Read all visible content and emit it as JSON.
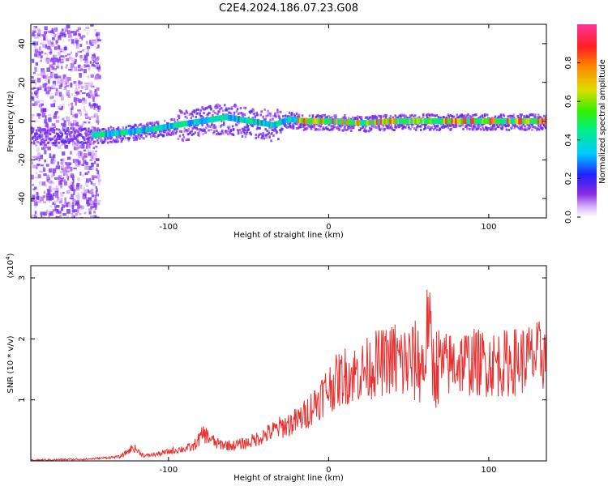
{
  "title": "C2E4.2024.186.07.23.G08",
  "chart_data": [
    {
      "type": "heatmap",
      "title": "C2E4.2024.186.07.23.G08",
      "xlabel": "Height of straight line (km)",
      "ylabel": "Frequency (Hz)",
      "xlim": [
        -186,
        136
      ],
      "ylim": [
        -50,
        50
      ],
      "xticks": [
        -100,
        0,
        100
      ],
      "xtick_labels": [
        "-100",
        "0",
        "100"
      ],
      "yticks": [
        -40,
        -20,
        0,
        20,
        40
      ],
      "ytick_labels": [
        "-40",
        "-20",
        "0",
        "20",
        "40"
      ],
      "colorbar": {
        "label": "Normalized spectral amplitude",
        "range": [
          0,
          1
        ],
        "ticks": [
          0.0,
          0.2,
          0.4,
          0.6,
          0.8
        ],
        "tick_labels": [
          "0.0",
          "0.2",
          "0.4",
          "0.6",
          "0.8"
        ],
        "colormap": "rainbow (white-purple-blue-cyan-green-yellow-red-magenta)"
      },
      "ridge_center_hz": {
        "x": [
          -186,
          -145,
          -130,
          -110,
          -95,
          -80,
          -65,
          -50,
          -35,
          -25,
          -15,
          0,
          20,
          40,
          60,
          80,
          100,
          136
        ],
        "y": [
          -7,
          -7,
          -6,
          -4,
          -2,
          0,
          2,
          0,
          -2,
          1,
          0,
          0,
          -1,
          0,
          0,
          0,
          0,
          0
        ]
      }
    },
    {
      "type": "line",
      "xlabel": "Height of straight line (km)",
      "ylabel": "SNR (10 * v/v)",
      "y_multiplier": "(x10^4)",
      "xlim": [
        -186,
        136
      ],
      "ylim": [
        0,
        3.2
      ],
      "xticks": [
        -100,
        0,
        100
      ],
      "xtick_labels": [
        "-100",
        "0",
        "100"
      ],
      "yticks": [
        1,
        2,
        3
      ],
      "ytick_labels": [
        "1",
        "2",
        "3"
      ],
      "color": "#e83030",
      "series": [
        {
          "name": "SNR",
          "x": [
            -186,
            -170,
            -150,
            -140,
            -130,
            -122,
            -115,
            -105,
            -95,
            -85,
            -78,
            -70,
            -60,
            -50,
            -40,
            -30,
            -20,
            -15,
            -10,
            -5,
            0,
            10,
            20,
            25,
            30,
            35,
            40,
            45,
            50,
            55,
            60,
            62,
            65,
            70,
            75,
            80,
            90,
            100,
            110,
            120,
            130,
            136
          ],
          "y": [
            0.01,
            0.02,
            0.03,
            0.05,
            0.07,
            0.22,
            0.08,
            0.12,
            0.18,
            0.22,
            0.45,
            0.28,
            0.25,
            0.3,
            0.42,
            0.55,
            0.65,
            0.75,
            0.9,
            1.05,
            1.2,
            1.4,
            1.45,
            1.52,
            1.6,
            1.62,
            1.68,
            1.6,
            1.6,
            1.62,
            1.55,
            2.45,
            1.55,
            1.55,
            1.58,
            1.62,
            1.62,
            1.6,
            1.6,
            1.65,
            1.7,
            1.75
          ]
        }
      ]
    }
  ]
}
